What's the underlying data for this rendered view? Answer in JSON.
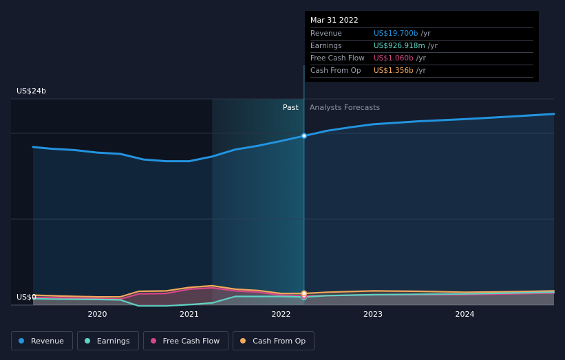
{
  "chart_data": {
    "type": "area",
    "ylabel_top": "US$24b",
    "ylabel_bottom": "US$0",
    "ylim": [
      0,
      24
    ],
    "xlim": [
      2019.3,
      2024.97
    ],
    "x_ticks": [
      {
        "label": "2020",
        "value": 2020.0
      },
      {
        "label": "2021",
        "value": 2021.0
      },
      {
        "label": "2022",
        "value": 2022.0
      },
      {
        "label": "2023",
        "value": 2023.0
      },
      {
        "label": "2024",
        "value": 2024.0
      }
    ],
    "past_label": "Past",
    "forecast_label": "Analysts Forecasts",
    "past_region_start": 2021.25,
    "divider_x": 2022.25,
    "series": [
      {
        "name": "Revenue",
        "color": "#2394df",
        "points": [
          [
            2019.3,
            18.4
          ],
          [
            2019.5,
            18.2
          ],
          [
            2019.75,
            18.05
          ],
          [
            2020.0,
            17.75
          ],
          [
            2020.25,
            17.6
          ],
          [
            2020.5,
            16.95
          ],
          [
            2020.75,
            16.75
          ],
          [
            2021.0,
            16.75
          ],
          [
            2021.25,
            17.3
          ],
          [
            2021.5,
            18.1
          ],
          [
            2021.75,
            18.55
          ],
          [
            2022.0,
            19.1
          ],
          [
            2022.25,
            19.7
          ],
          [
            2022.5,
            20.3
          ],
          [
            2022.75,
            20.7
          ],
          [
            2023.0,
            21.05
          ],
          [
            2023.5,
            21.4
          ],
          [
            2024.0,
            21.65
          ],
          [
            2024.5,
            21.95
          ],
          [
            2024.97,
            22.25
          ]
        ]
      },
      {
        "name": "Earnings",
        "color": "#5fd3c3",
        "points": [
          [
            2019.3,
            0.75
          ],
          [
            2019.5,
            0.7
          ],
          [
            2020.0,
            0.65
          ],
          [
            2020.25,
            0.6
          ],
          [
            2020.45,
            -0.1
          ],
          [
            2020.75,
            -0.1
          ],
          [
            2021.0,
            0.05
          ],
          [
            2021.25,
            0.25
          ],
          [
            2021.5,
            1.0
          ],
          [
            2021.75,
            1.0
          ],
          [
            2022.0,
            1.0
          ],
          [
            2022.25,
            0.927
          ],
          [
            2022.5,
            1.1
          ],
          [
            2023.0,
            1.2
          ],
          [
            2023.5,
            1.25
          ],
          [
            2024.0,
            1.3
          ],
          [
            2024.5,
            1.4
          ],
          [
            2024.97,
            1.5
          ]
        ]
      },
      {
        "name": "Free Cash Flow",
        "color": "#d6468a",
        "points": [
          [
            2019.3,
            0.9
          ],
          [
            2019.6,
            0.85
          ],
          [
            2020.0,
            0.75
          ],
          [
            2020.25,
            0.7
          ],
          [
            2020.45,
            1.3
          ],
          [
            2020.75,
            1.35
          ],
          [
            2021.0,
            1.85
          ],
          [
            2021.25,
            2.0
          ],
          [
            2021.5,
            1.65
          ],
          [
            2021.75,
            1.5
          ],
          [
            2022.0,
            1.15
          ],
          [
            2022.25,
            1.06
          ],
          [
            2022.5,
            1.1
          ],
          [
            2023.0,
            1.2
          ],
          [
            2023.5,
            1.2
          ],
          [
            2024.0,
            1.2
          ],
          [
            2024.5,
            1.3
          ],
          [
            2024.97,
            1.4
          ]
        ]
      },
      {
        "name": "Cash From Op",
        "color": "#f2a85c",
        "points": [
          [
            2019.3,
            1.15
          ],
          [
            2019.6,
            1.05
          ],
          [
            2020.0,
            0.95
          ],
          [
            2020.25,
            0.95
          ],
          [
            2020.45,
            1.6
          ],
          [
            2020.75,
            1.65
          ],
          [
            2021.0,
            2.05
          ],
          [
            2021.25,
            2.25
          ],
          [
            2021.5,
            1.85
          ],
          [
            2021.75,
            1.7
          ],
          [
            2022.0,
            1.35
          ],
          [
            2022.25,
            1.356
          ],
          [
            2022.5,
            1.5
          ],
          [
            2023.0,
            1.65
          ],
          [
            2023.5,
            1.6
          ],
          [
            2024.0,
            1.5
          ],
          [
            2024.5,
            1.55
          ],
          [
            2024.97,
            1.65
          ]
        ]
      }
    ],
    "tooltip": {
      "date": "Mar 31 2022",
      "rows": [
        {
          "label": "Revenue",
          "value": "US$19.700b",
          "unit": "/yr",
          "color": "#2394df"
        },
        {
          "label": "Earnings",
          "value": "US$926.918m",
          "unit": "/yr",
          "color": "#5fd3c3"
        },
        {
          "label": "Free Cash Flow",
          "value": "US$1.060b",
          "unit": "/yr",
          "color": "#d6468a"
        },
        {
          "label": "Cash From Op",
          "value": "US$1.356b",
          "unit": "/yr",
          "color": "#f2a85c"
        }
      ]
    },
    "legend": [
      {
        "label": "Revenue",
        "color": "#2394df"
      },
      {
        "label": "Earnings",
        "color": "#5fd3c3"
      },
      {
        "label": "Free Cash Flow",
        "color": "#d6468a"
      },
      {
        "label": "Cash From Op",
        "color": "#f2a85c"
      }
    ]
  }
}
